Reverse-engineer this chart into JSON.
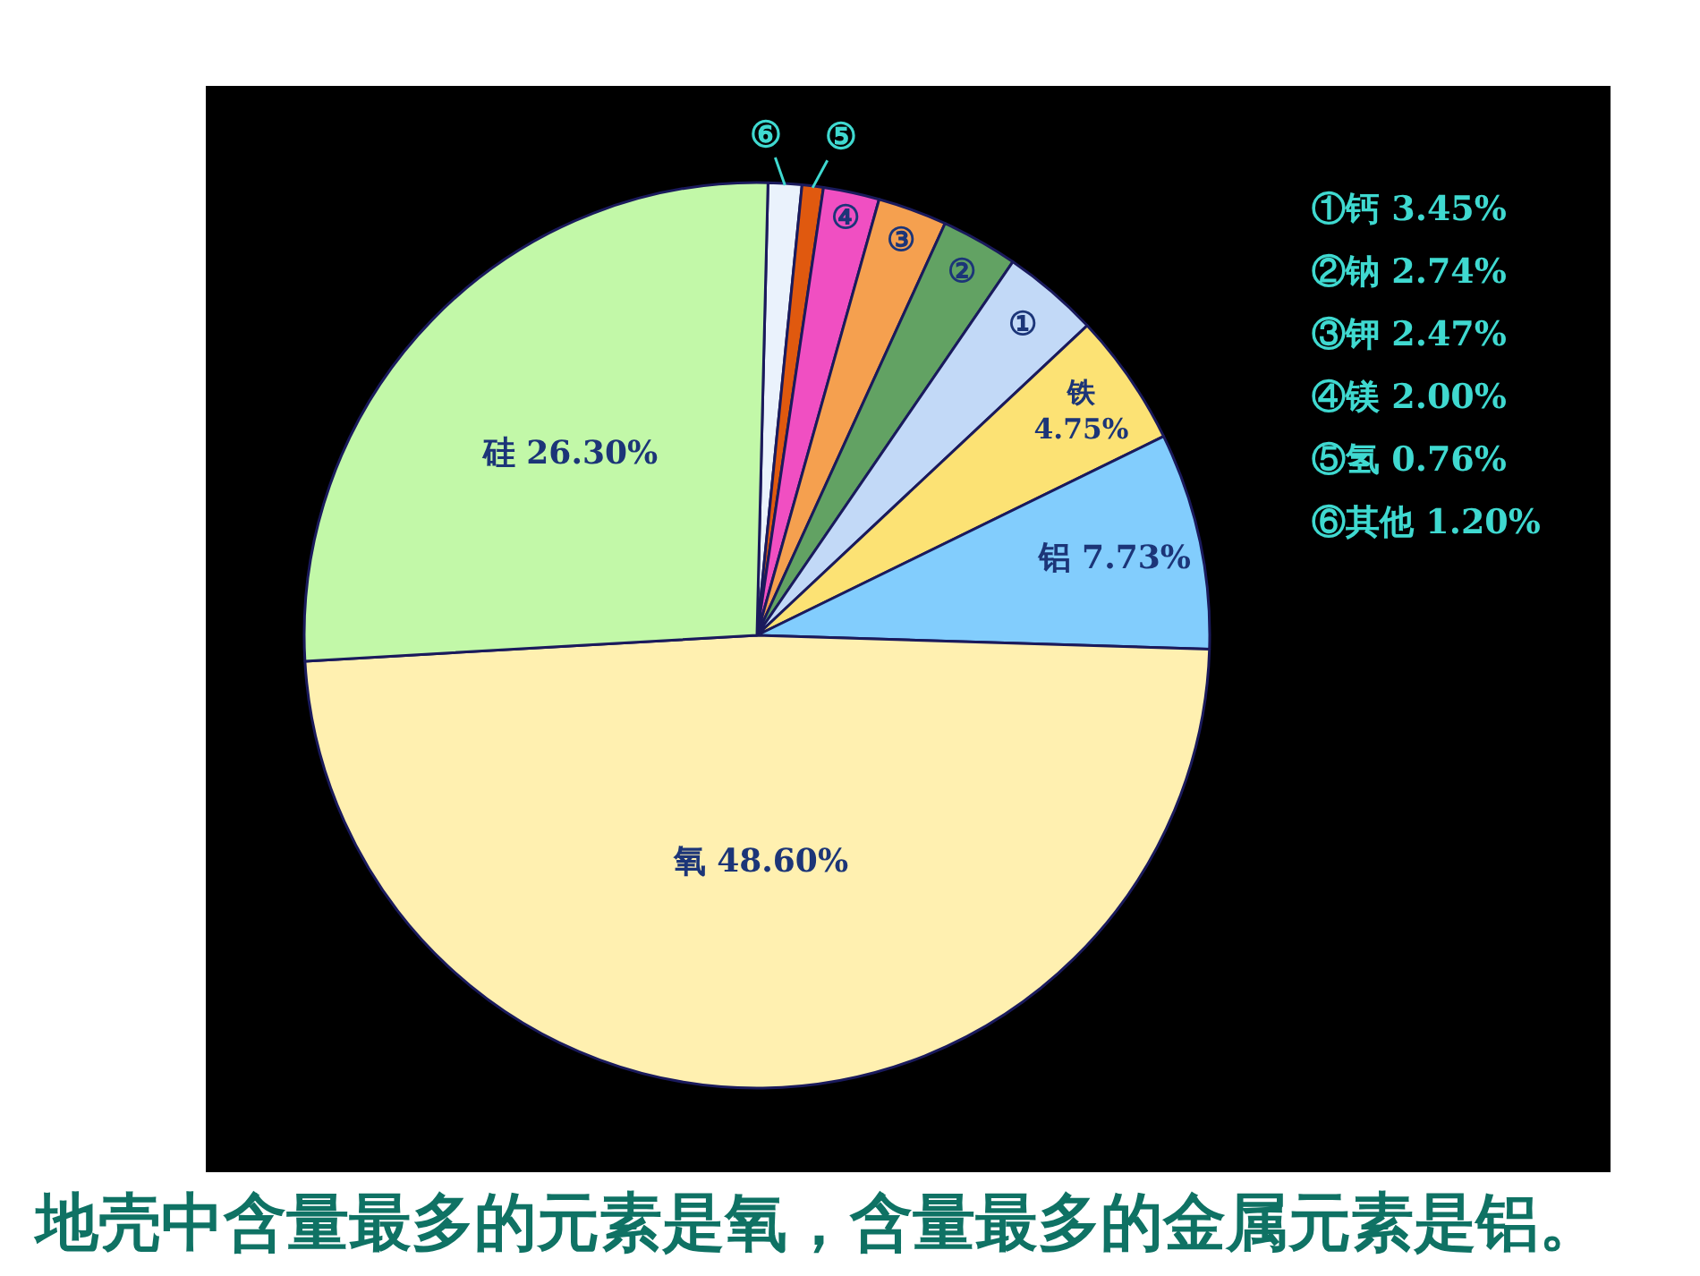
{
  "chart_data": {
    "type": "pie",
    "categories": [
      "⑥",
      "⑤",
      "④",
      "③",
      "②",
      "①",
      "铁",
      "铝",
      "氧",
      "硅"
    ],
    "values": [
      1.2,
      0.76,
      2.0,
      2.47,
      2.74,
      3.45,
      4.75,
      7.73,
      48.6,
      26.3
    ],
    "colors": [
      "#eaf2fc",
      "#e0590f",
      "#f04fc2",
      "#f5a04f",
      "#62a263",
      "#c2d9f7",
      "#fce274",
      "#82cdfd",
      "#fff0b0",
      "#c2f8a8"
    ],
    "value_labels": [
      null,
      null,
      null,
      null,
      null,
      null,
      "4.75%",
      "7.73%",
      "48.60%",
      "26.30%"
    ],
    "annotations": [
      "①钙 3.45%",
      "②钠 2.74%",
      "③钾 2.47%",
      "④镁 2.00%",
      "⑤氢 0.76%",
      "⑥其他 1.20%",
      "地壳中含量最多的元素是氧，含量最多的金属元素是铝。"
    ]
  }
}
